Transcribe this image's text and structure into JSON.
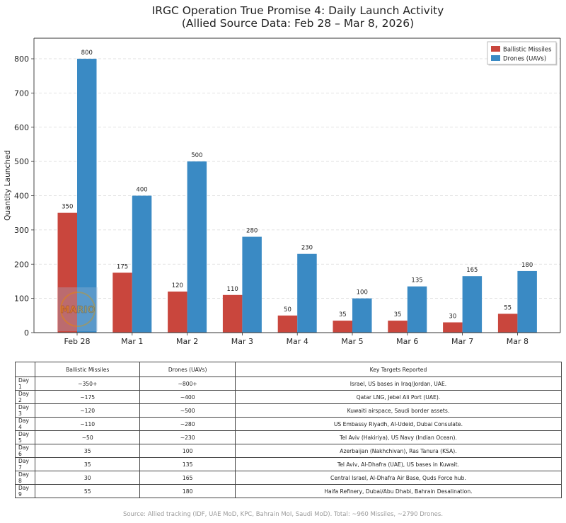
{
  "chart_data": {
    "type": "bar",
    "title": "IRGC Operation True Promise 4: Daily Launch Activity",
    "subtitle": "(Allied Source Data: Feb 28 – Mar 8, 2026)",
    "categories": [
      "Feb 28",
      "Mar 1",
      "Mar 2",
      "Mar 3",
      "Mar 4",
      "Mar 5",
      "Mar 6",
      "Mar 7",
      "Mar 8"
    ],
    "series": [
      {
        "name": "Ballistic Missiles",
        "color": "#c9463d",
        "values": [
          350,
          175,
          120,
          110,
          50,
          35,
          35,
          30,
          55
        ]
      },
      {
        "name": "Drones (UAVs)",
        "color": "#3a8ac4",
        "values": [
          800,
          400,
          500,
          280,
          230,
          100,
          135,
          165,
          180
        ]
      }
    ],
    "xlabel": "",
    "ylabel": "Quantity Launched",
    "ylim": [
      0,
      860
    ],
    "yticks": [
      0,
      100,
      200,
      300,
      400,
      500,
      600,
      700,
      800
    ],
    "grid": true,
    "legend": "top-right"
  },
  "watermark_text": "MARIO",
  "table": {
    "headers": [
      "",
      "Ballistic Missiles",
      "Drones (UAVs)",
      "Key Targets Reported"
    ],
    "rows": [
      [
        "Day 1",
        "~350+",
        "~800+",
        "Israel, US bases in Iraq/Jordan, UAE."
      ],
      [
        "Day 2",
        "~175",
        "~400",
        "Qatar LNG, Jebel Ali Port (UAE)."
      ],
      [
        "Day 3",
        "~120",
        "~500",
        "Kuwaiti airspace, Saudi border assets."
      ],
      [
        "Day 4",
        "~110",
        "~280",
        "US Embassy Riyadh, Al-Udeid, Dubai Consulate."
      ],
      [
        "Day 5",
        "~50",
        "~230",
        "Tel Aviv (Hakiriya), US Navy (Indian Ocean)."
      ],
      [
        "Day 6",
        "35",
        "100",
        "Azerbaijan (Nakhchivan), Ras Tanura (KSA)."
      ],
      [
        "Day 7",
        "35",
        "135",
        "Tel Aviv, Al-Dhafra (UAE), US bases in Kuwait."
      ],
      [
        "Day 8",
        "30",
        "165",
        "Central Israel, Al-Dhafra Air Base, Quds Force hub."
      ],
      [
        "Day 9",
        "55",
        "180",
        "Haifa Refinery, Dubai/Abu Dhabi, Bahrain Desalination."
      ]
    ]
  },
  "source_note": "Source: Allied tracking (IDF, UAE MoD, KPC, Bahrain MoI, Saudi MoD). Total: ~960 Missiles, ~2790 Drones."
}
